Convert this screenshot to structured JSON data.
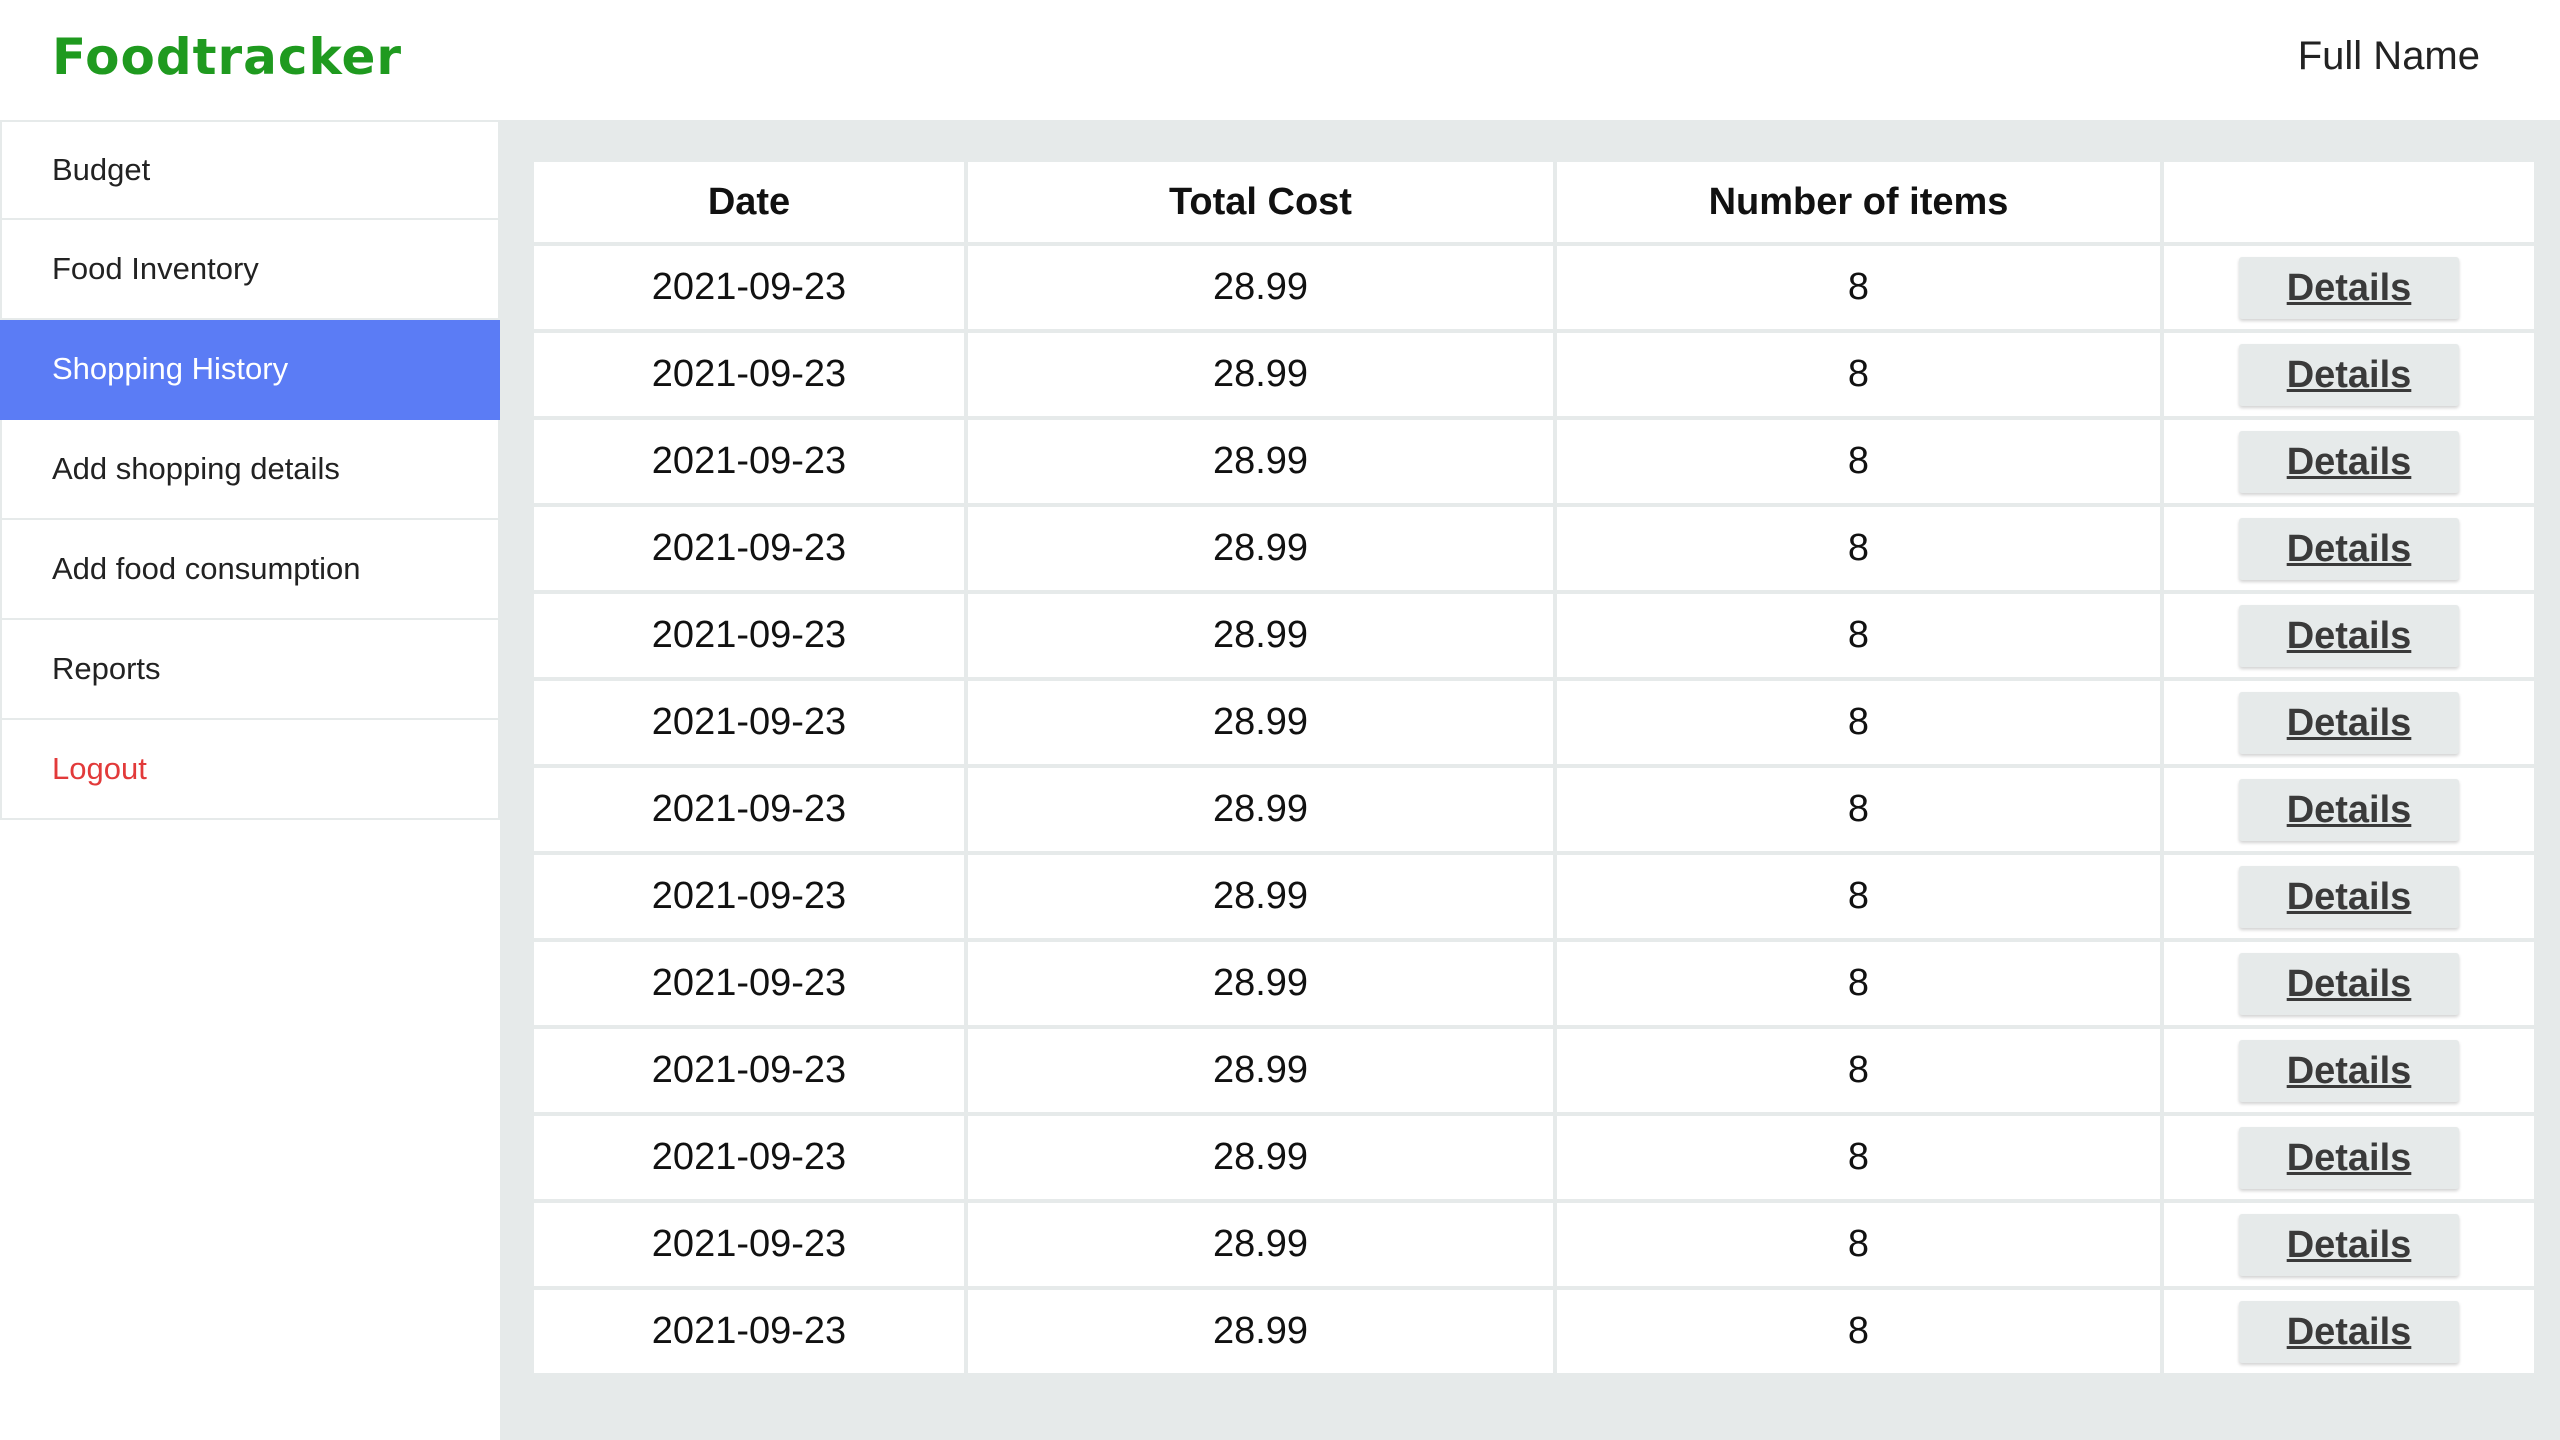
{
  "header": {
    "brand": "Foodtracker",
    "user_name": "Full Name"
  },
  "sidebar": {
    "items": [
      {
        "label": "Budget"
      },
      {
        "label": "Food Inventory"
      },
      {
        "label": "Shopping History"
      },
      {
        "label": "Add shopping details"
      },
      {
        "label": "Add food consumption"
      },
      {
        "label": "Reports"
      },
      {
        "label": "Logout"
      }
    ],
    "active_index": 2
  },
  "table": {
    "headers": {
      "date": "Date",
      "total_cost": "Total Cost",
      "num_items": "Number of items",
      "action": ""
    },
    "details_label": "Details",
    "rows": [
      {
        "date": "2021-09-23",
        "total_cost": "28.99",
        "num_items": "8"
      },
      {
        "date": "2021-09-23",
        "total_cost": "28.99",
        "num_items": "8"
      },
      {
        "date": "2021-09-23",
        "total_cost": "28.99",
        "num_items": "8"
      },
      {
        "date": "2021-09-23",
        "total_cost": "28.99",
        "num_items": "8"
      },
      {
        "date": "2021-09-23",
        "total_cost": "28.99",
        "num_items": "8"
      },
      {
        "date": "2021-09-23",
        "total_cost": "28.99",
        "num_items": "8"
      },
      {
        "date": "2021-09-23",
        "total_cost": "28.99",
        "num_items": "8"
      },
      {
        "date": "2021-09-23",
        "total_cost": "28.99",
        "num_items": "8"
      },
      {
        "date": "2021-09-23",
        "total_cost": "28.99",
        "num_items": "8"
      },
      {
        "date": "2021-09-23",
        "total_cost": "28.99",
        "num_items": "8"
      },
      {
        "date": "2021-09-23",
        "total_cost": "28.99",
        "num_items": "8"
      },
      {
        "date": "2021-09-23",
        "total_cost": "28.99",
        "num_items": "8"
      },
      {
        "date": "2021-09-23",
        "total_cost": "28.99",
        "num_items": "8"
      }
    ]
  },
  "colors": {
    "brand": "#1f9a1f",
    "active_nav": "#5b7cf5",
    "logout": "#e23a3a",
    "background": "#e6eaea"
  }
}
